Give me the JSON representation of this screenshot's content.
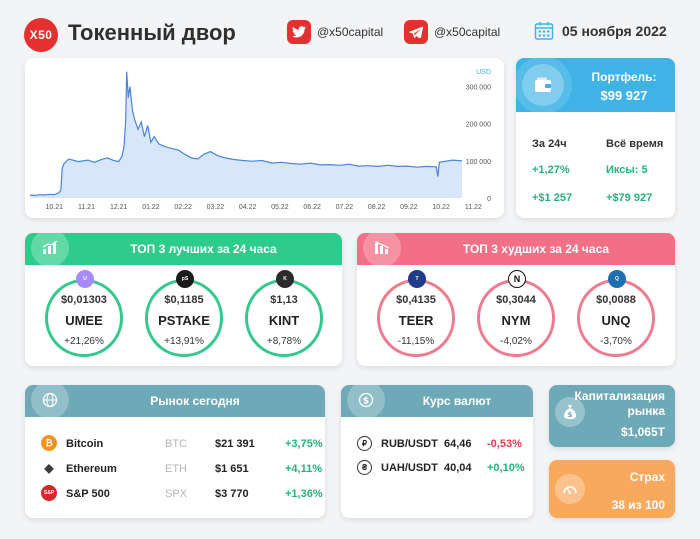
{
  "header": {
    "logo": "X50",
    "title": "Токенный двор",
    "twitter": "@x50capital",
    "telegram": "@x50capital",
    "date": "05 ноября 2022"
  },
  "chart_data": {
    "type": "area",
    "title": "",
    "ylabel": "USD",
    "ylim": [
      0,
      350000
    ],
    "y_ticks": [
      "0",
      "100 000",
      "200 000",
      "300 000"
    ],
    "x_ticks": [
      "10.21",
      "11.21",
      "12.21",
      "01.22",
      "02.22",
      "03.22",
      "04.22",
      "05.22",
      "06.22",
      "07.22",
      "08.22",
      "09.22",
      "10.22",
      "11.22"
    ],
    "grid": false,
    "color": "#4a86d8",
    "x": [
      0,
      0.15,
      0.3,
      0.45,
      0.6,
      0.75,
      0.9,
      0.96,
      1.0,
      1.05,
      1.2,
      1.5,
      1.8,
      2.0,
      2.2,
      2.4,
      2.6,
      2.75,
      2.85,
      2.92,
      2.97,
      3.0,
      3.05,
      3.1,
      3.18,
      3.25,
      3.35,
      3.45,
      3.55,
      3.65,
      3.75,
      3.85,
      4.0,
      4.2,
      4.4,
      4.6,
      4.8,
      5.0,
      5.2,
      5.4,
      5.6,
      5.8,
      6.0,
      6.3,
      6.6,
      6.9,
      7.2,
      7.5,
      7.8,
      8.1,
      8.4,
      8.7,
      9.0,
      9.3,
      9.6,
      9.9,
      10.2,
      10.5,
      10.8,
      11.1,
      11.4,
      11.7,
      12.0,
      12.3,
      12.6,
      12.65,
      12.7,
      12.9,
      13.1,
      13.4
    ],
    "y": [
      8000,
      7000,
      9000,
      8000,
      10000,
      9000,
      14000,
      22000,
      80000,
      92000,
      105000,
      98000,
      102000,
      96000,
      103000,
      108000,
      101000,
      98000,
      112000,
      140000,
      210000,
      340000,
      270000,
      300000,
      235000,
      210000,
      185000,
      205000,
      165000,
      195000,
      150000,
      165000,
      145000,
      138000,
      133000,
      129000,
      118000,
      108000,
      105000,
      118000,
      125000,
      115000,
      109000,
      104000,
      101000,
      99000,
      101000,
      94000,
      96000,
      93000,
      91000,
      94000,
      89000,
      90000,
      88000,
      91000,
      86000,
      87000,
      85000,
      88000,
      85000,
      86000,
      83000,
      85000,
      84000,
      58000,
      96000,
      99000,
      102000,
      100000
    ]
  },
  "portfolio": {
    "title": "Портфель:",
    "value": "$99 927",
    "col1_header": "За 24ч",
    "col1_values": [
      "+1,27%",
      "+$1 257"
    ],
    "col2_header": "Всё время",
    "col2_values": [
      "Иксы: 5",
      "+$79 927"
    ]
  },
  "best": {
    "title": "ТОП 3 лучших за 24 часа",
    "items": [
      {
        "price": "$0,01303",
        "symbol": "UMEE",
        "change": "+21,26%",
        "icon_color": "#a78bfa"
      },
      {
        "price": "$0,1185",
        "symbol": "PSTAKE",
        "change": "+13,91%",
        "icon_color": "#1a1a1a"
      },
      {
        "price": "$1,13",
        "symbol": "KINT",
        "change": "+8,78%",
        "icon_color": "#2b2b2b"
      }
    ]
  },
  "worst": {
    "title": "ТОП 3 худших за 24 часа",
    "items": [
      {
        "price": "$0,4135",
        "symbol": "TEER",
        "change": "-11,15%",
        "icon_color": "#1f3b8a"
      },
      {
        "price": "$0,3044",
        "symbol": "NYM",
        "change": "-4,02%",
        "icon_color": "#111111"
      },
      {
        "price": "$0,0088",
        "symbol": "UNQ",
        "change": "-3,70%",
        "icon_color": "#1e6fb0"
      }
    ]
  },
  "market": {
    "title": "Рынок сегодня",
    "rows": [
      {
        "name": "Bitcoin",
        "ticker": "BTC",
        "price": "$21 391",
        "change": "+3,75%",
        "icon": "₿",
        "icon_color": "#f7931a"
      },
      {
        "name": "Ethereum",
        "ticker": "ETH",
        "price": "$1 651",
        "change": "+4,11%",
        "icon": "◆",
        "icon_color": "#3c3c3d"
      },
      {
        "name": "S&P 500",
        "ticker": "SPX",
        "price": "$3 770",
        "change": "+1,36%",
        "icon": "S&P",
        "icon_color": "#d9262b"
      }
    ]
  },
  "fx": {
    "title": "Курс валют",
    "rows": [
      {
        "name": "RUB/USDT",
        "value": "64,46",
        "change": "-0,53%",
        "icon": "₽",
        "change_color": "#e23b4b"
      },
      {
        "name": "UAH/USDT",
        "value": "40,04",
        "change": "+0,10%",
        "icon": "₴",
        "change_color": "#23b577"
      }
    ]
  },
  "cap": {
    "title_line1": "Капитализация",
    "title_line2": "рынка",
    "value": "$1,065T"
  },
  "fear": {
    "title": "Страх",
    "value": "38 из 100"
  }
}
